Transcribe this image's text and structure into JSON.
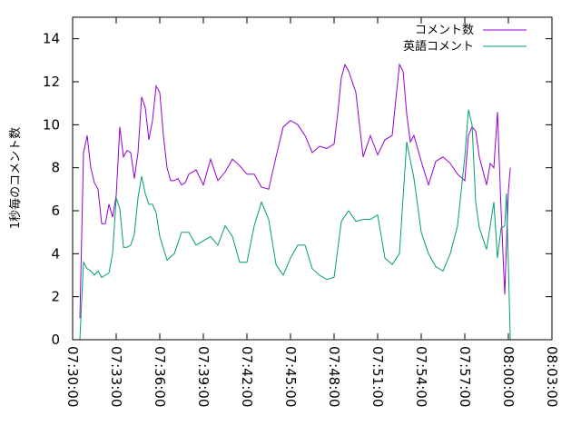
{
  "chart_data": {
    "type": "line",
    "title": "",
    "xlabel": "",
    "ylabel": "1秒毎のコメント数",
    "xlim": [
      "07:30:00",
      "08:03:00"
    ],
    "ylim": [
      0,
      15
    ],
    "x_ticks": [
      "07:30:00",
      "07:33:00",
      "07:36:00",
      "07:39:00",
      "07:42:00",
      "07:45:00",
      "07:48:00",
      "07:51:00",
      "07:54:00",
      "07:57:00",
      "08:00:00",
      "08:03:00"
    ],
    "y_ticks": [
      0,
      2,
      4,
      6,
      8,
      10,
      12,
      14
    ],
    "grid": false,
    "legend_position": "top-right",
    "series": [
      {
        "name": "コメント数",
        "color": "#9400d3",
        "x": [
          "07:30:30",
          "07:30:45",
          "07:31:00",
          "07:31:15",
          "07:31:30",
          "07:31:45",
          "07:32:00",
          "07:32:15",
          "07:32:30",
          "07:32:45",
          "07:33:00",
          "07:33:15",
          "07:33:30",
          "07:33:45",
          "07:34:00",
          "07:34:15",
          "07:34:30",
          "07:34:45",
          "07:35:00",
          "07:35:15",
          "07:35:30",
          "07:35:45",
          "07:36:00",
          "07:36:15",
          "07:36:30",
          "07:36:45",
          "07:37:00",
          "07:37:15",
          "07:37:30",
          "07:37:45",
          "07:38:00",
          "07:38:30",
          "07:39:00",
          "07:39:30",
          "07:40:00",
          "07:40:30",
          "07:41:00",
          "07:41:30",
          "07:42:00",
          "07:42:30",
          "07:43:00",
          "07:43:30",
          "07:44:00",
          "07:44:30",
          "07:45:00",
          "07:45:30",
          "07:46:00",
          "07:46:30",
          "07:47:00",
          "07:47:30",
          "07:48:00",
          "07:48:15",
          "07:48:30",
          "07:48:45",
          "07:49:00",
          "07:49:30",
          "07:50:00",
          "07:50:30",
          "07:51:00",
          "07:51:30",
          "07:52:00",
          "07:52:30",
          "07:52:45",
          "07:53:00",
          "07:53:15",
          "07:53:30",
          "07:54:00",
          "07:54:30",
          "07:55:00",
          "07:55:30",
          "07:56:00",
          "07:56:30",
          "07:57:00",
          "07:57:15",
          "07:57:30",
          "07:57:45",
          "07:58:00",
          "07:58:30",
          "07:58:45",
          "07:59:00",
          "07:59:15",
          "07:59:30",
          "07:59:45",
          "07:59:52",
          "08:00:00",
          "08:00:08"
        ],
        "y": [
          1.0,
          8.7,
          9.5,
          8.0,
          7.3,
          7.0,
          5.4,
          5.4,
          6.3,
          5.7,
          6.7,
          9.9,
          8.5,
          8.8,
          8.7,
          7.5,
          8.7,
          11.3,
          10.8,
          9.3,
          10.2,
          11.8,
          11.5,
          9.5,
          8.0,
          7.4,
          7.4,
          7.5,
          7.2,
          7.3,
          7.7,
          7.9,
          7.2,
          8.4,
          7.4,
          7.8,
          8.4,
          8.1,
          7.7,
          7.7,
          7.1,
          7.0,
          8.5,
          9.9,
          10.2,
          10.0,
          9.5,
          8.7,
          9.0,
          8.9,
          9.1,
          10.5,
          12.2,
          12.8,
          12.5,
          11.5,
          8.5,
          9.5,
          8.6,
          9.3,
          9.5,
          12.8,
          12.5,
          10.5,
          9.2,
          9.5,
          8.3,
          7.2,
          8.3,
          8.5,
          8.2,
          7.7,
          7.4,
          9.5,
          9.9,
          9.7,
          8.5,
          7.2,
          8.2,
          8.0,
          10.6,
          6.0,
          2.1,
          4.5,
          6.9,
          8.0
        ],
        "x_trimmed_note": ""
      },
      {
        "name": "英語コメント",
        "color": "#009e73",
        "x": [
          "07:30:30",
          "07:30:45",
          "07:31:00",
          "07:31:15",
          "07:31:30",
          "07:31:45",
          "07:32:00",
          "07:32:15",
          "07:32:30",
          "07:32:45",
          "07:33:00",
          "07:33:15",
          "07:33:30",
          "07:33:45",
          "07:34:00",
          "07:34:15",
          "07:34:30",
          "07:34:45",
          "07:35:00",
          "07:35:15",
          "07:35:30",
          "07:35:45",
          "07:36:00",
          "07:36:30",
          "07:37:00",
          "07:37:30",
          "07:38:00",
          "07:38:30",
          "07:39:00",
          "07:39:30",
          "07:40:00",
          "07:40:30",
          "07:41:00",
          "07:41:30",
          "07:42:00",
          "07:42:30",
          "07:43:00",
          "07:43:30",
          "07:44:00",
          "07:44:30",
          "07:45:00",
          "07:45:30",
          "07:46:00",
          "07:46:30",
          "07:47:00",
          "07:47:30",
          "07:48:00",
          "07:48:30",
          "07:49:00",
          "07:49:30",
          "07:50:00",
          "07:50:30",
          "07:51:00",
          "07:51:30",
          "07:52:00",
          "07:52:30",
          "07:53:00",
          "07:53:30",
          "07:54:00",
          "07:54:30",
          "07:55:00",
          "07:55:30",
          "07:56:00",
          "07:56:30",
          "07:57:00",
          "07:57:15",
          "07:57:30",
          "07:57:45",
          "07:58:00",
          "07:58:30",
          "07:59:00",
          "07:59:15",
          "07:59:30",
          "07:59:45",
          "07:59:52",
          "08:00:00",
          "08:00:08"
        ],
        "y": [
          0.0,
          3.6,
          3.3,
          3.2,
          3.0,
          3.2,
          2.9,
          3.0,
          3.1,
          4.0,
          6.6,
          6.1,
          4.3,
          4.3,
          4.4,
          4.9,
          6.6,
          7.6,
          6.8,
          6.3,
          6.3,
          5.9,
          4.8,
          3.7,
          4.0,
          5.0,
          5.0,
          4.4,
          4.6,
          4.8,
          4.4,
          5.3,
          4.8,
          3.6,
          3.6,
          5.3,
          6.4,
          5.6,
          3.5,
          3.0,
          3.8,
          4.4,
          4.4,
          3.3,
          3.0,
          2.8,
          2.9,
          5.5,
          6.0,
          5.5,
          5.6,
          5.6,
          5.8,
          3.8,
          3.5,
          4.0,
          9.2,
          7.5,
          5.0,
          4.0,
          3.4,
          3.2,
          4.0,
          5.3,
          8.5,
          10.7,
          10.0,
          6.4,
          5.2,
          4.2,
          6.4,
          3.8,
          5.2,
          5.3,
          6.8,
          3.5,
          0.0
        ],
        "x_trimmed_note": ""
      }
    ]
  }
}
